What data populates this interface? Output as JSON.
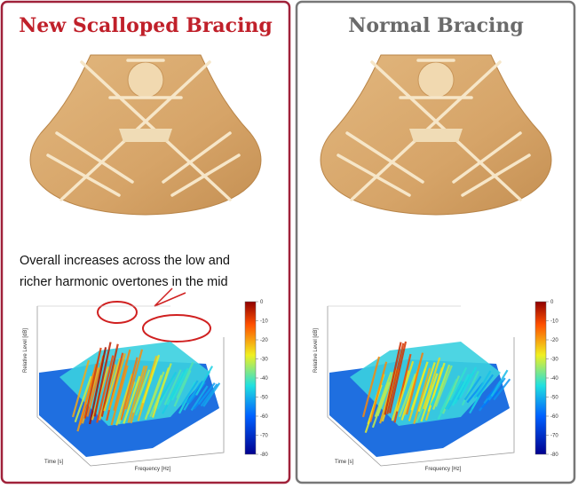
{
  "panels": [
    {
      "title": "New Scalloped Bracing",
      "annotation": [
        "Overall increases across the low and",
        "richer harmonic overtones in the mid"
      ],
      "plot": {
        "y_label": "Relative Level [dB]",
        "x_label": "Frequency [Hz]",
        "depth_label": "Time [s]",
        "colorbar_ticks": [
          "0",
          "-10",
          "-20",
          "-30",
          "-40",
          "-50",
          "-60",
          "-70",
          "-80"
        ]
      }
    },
    {
      "title": "Normal Bracing",
      "plot": {
        "y_label": "Relative Level [dB]",
        "x_label": "Frequency [Hz]",
        "depth_label": "Time [s]",
        "colorbar_ticks": [
          "0",
          "-10",
          "-20",
          "-30",
          "-40",
          "-50",
          "-60",
          "-70",
          "-80"
        ]
      }
    }
  ]
}
